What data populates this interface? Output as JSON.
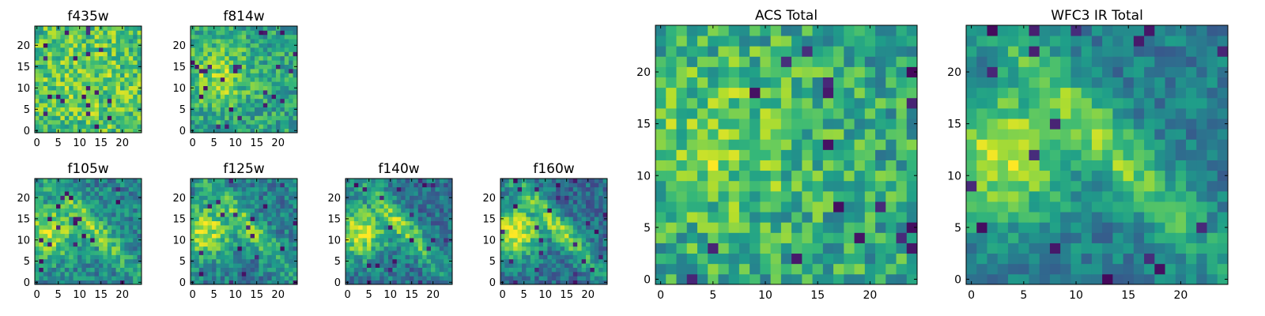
{
  "figure": {
    "colormap": "viridis",
    "colormap_stops": [
      "#440154",
      "#3b528b",
      "#21918c",
      "#5ec962",
      "#fde725"
    ]
  },
  "chart_data": [
    {
      "type": "heatmap",
      "title": "f435w",
      "xlabel": "",
      "ylabel": "",
      "grid_size": 25,
      "xlim": [
        0,
        24
      ],
      "ylim": [
        0,
        24
      ],
      "xticks": [
        0,
        5,
        10,
        15,
        20
      ],
      "yticks": [
        0,
        5,
        10,
        15,
        20
      ],
      "pattern": "noise",
      "base": 0.68,
      "noise_amp": 0.22,
      "blob_amp": 0.08,
      "seed": 11
    },
    {
      "type": "heatmap",
      "title": "f814w",
      "xlabel": "",
      "ylabel": "",
      "grid_size": 25,
      "xlim": [
        0,
        24
      ],
      "ylim": [
        0,
        24
      ],
      "xticks": [
        0,
        5,
        10,
        15,
        20
      ],
      "yticks": [
        0,
        5,
        10,
        15,
        20
      ],
      "pattern": "blob",
      "base": 0.58,
      "noise_amp": 0.2,
      "blob_amp": 0.25,
      "seed": 23
    },
    {
      "type": "heatmap",
      "title": "f105w",
      "xlabel": "",
      "ylabel": "",
      "grid_size": 25,
      "xlim": [
        0,
        24
      ],
      "ylim": [
        0,
        24
      ],
      "xticks": [
        0,
        5,
        10,
        15,
        20
      ],
      "yticks": [
        0,
        5,
        10,
        15,
        20
      ],
      "pattern": "diagonal",
      "base": 0.45,
      "noise_amp": 0.18,
      "blob_amp": 0.45,
      "seed": 37
    },
    {
      "type": "heatmap",
      "title": "f125w",
      "xlabel": "",
      "ylabel": "",
      "grid_size": 25,
      "xlim": [
        0,
        24
      ],
      "ylim": [
        0,
        24
      ],
      "xticks": [
        0,
        5,
        10,
        15,
        20
      ],
      "yticks": [
        0,
        5,
        10,
        15,
        20
      ],
      "pattern": "diagonal",
      "base": 0.42,
      "noise_amp": 0.18,
      "blob_amp": 0.48,
      "seed": 41
    },
    {
      "type": "heatmap",
      "title": "f140w",
      "xlabel": "",
      "ylabel": "",
      "grid_size": 25,
      "xlim": [
        0,
        24
      ],
      "ylim": [
        0,
        24
      ],
      "xticks": [
        0,
        5,
        10,
        15,
        20
      ],
      "yticks": [
        0,
        5,
        10,
        15,
        20
      ],
      "pattern": "diagonal",
      "base": 0.38,
      "noise_amp": 0.18,
      "blob_amp": 0.55,
      "seed": 53
    },
    {
      "type": "heatmap",
      "title": "f160w",
      "xlabel": "",
      "ylabel": "",
      "grid_size": 25,
      "xlim": [
        0,
        24
      ],
      "ylim": [
        0,
        24
      ],
      "xticks": [
        0,
        5,
        10,
        15,
        20
      ],
      "yticks": [
        0,
        5,
        10,
        15,
        20
      ],
      "pattern": "diagonal",
      "base": 0.36,
      "noise_amp": 0.16,
      "blob_amp": 0.6,
      "seed": 67
    },
    {
      "type": "heatmap",
      "title": "ACS Total",
      "xlabel": "",
      "ylabel": "",
      "grid_size": 25,
      "xlim": [
        0,
        24
      ],
      "ylim": [
        0,
        24
      ],
      "xticks": [
        0,
        5,
        10,
        15,
        20
      ],
      "yticks": [
        0,
        5,
        10,
        15,
        20
      ],
      "pattern": "blob",
      "base": 0.6,
      "noise_amp": 0.22,
      "blob_amp": 0.2,
      "seed": 79
    },
    {
      "type": "heatmap",
      "title": "WFC3 IR Total",
      "xlabel": "",
      "ylabel": "",
      "grid_size": 25,
      "xlim": [
        0,
        24
      ],
      "ylim": [
        0,
        24
      ],
      "xticks": [
        0,
        5,
        10,
        15,
        20
      ],
      "yticks": [
        0,
        5,
        10,
        15,
        20
      ],
      "pattern": "diagonal",
      "base": 0.42,
      "noise_amp": 0.14,
      "blob_amp": 0.5,
      "seed": 97
    }
  ]
}
